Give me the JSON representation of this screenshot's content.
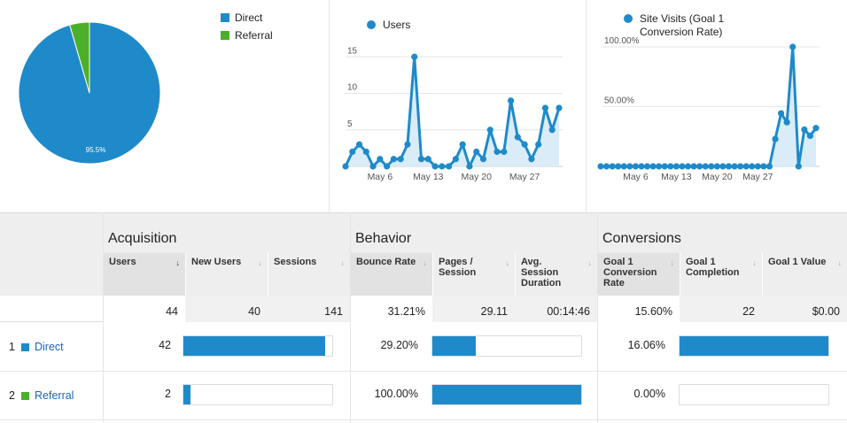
{
  "colors": {
    "direct": "#1f8ac9",
    "referral": "#4caf2a",
    "line": "#1f8ac9",
    "area": "#d9ecf8"
  },
  "pie": {
    "legend": [
      {
        "label": "Direct",
        "color": "#1f8ac9"
      },
      {
        "label": "Referral",
        "color": "#4caf2a"
      }
    ],
    "slice_label": "95.5%",
    "chart_data": {
      "type": "pie",
      "categories": [
        "Direct",
        "Referral"
      ],
      "values": [
        95.5,
        4.5
      ]
    }
  },
  "users_chart": {
    "legend": "Users",
    "chart_data": {
      "type": "line",
      "series": [
        {
          "name": "Users",
          "values": [
            0,
            2,
            3,
            2,
            0,
            1,
            0,
            1,
            1,
            3,
            15,
            1,
            1,
            0,
            0,
            0,
            1,
            3,
            0,
            2,
            1,
            5,
            2,
            2,
            9,
            4,
            3,
            1,
            3,
            8,
            5,
            8
          ]
        }
      ],
      "yticks": [
        5,
        10,
        15
      ],
      "ylim": [
        0,
        16
      ],
      "xticks": [
        "May 6",
        "May 13",
        "May 20",
        "May 27"
      ]
    }
  },
  "visits_chart": {
    "legend_line1": "Site Visits (Goal 1",
    "legend_line2": "Conversion Rate)",
    "chart_data": {
      "type": "line",
      "series": [
        {
          "name": "Site Visits (Goal 1 Conversion Rate)",
          "values": [
            0,
            0,
            0,
            0,
            0,
            0,
            0,
            0,
            0,
            0,
            0,
            0,
            0,
            0,
            0,
            0,
            0,
            0,
            0,
            0,
            0,
            0,
            0,
            0,
            0,
            0,
            0,
            0,
            0,
            0,
            22.9,
            44.4,
            36.9,
            100,
            0,
            30.8,
            25.6,
            32.1
          ]
        }
      ],
      "yticks": [
        "50.00%",
        "100.00%"
      ],
      "ylim": [
        0,
        100
      ],
      "xticks": [
        "May 6",
        "May 13",
        "May 20",
        "May 27"
      ]
    }
  },
  "table": {
    "groups": [
      "Acquisition",
      "Behavior",
      "Conversions"
    ],
    "columns": [
      {
        "label": "Users",
        "arrow": "↓"
      },
      {
        "label": "New Users",
        "arrow": "↓"
      },
      {
        "label": "Sessions",
        "arrow": "↓"
      },
      {
        "label": "Bounce Rate",
        "arrow": "↓"
      },
      {
        "label": "Pages / Session",
        "arrow": "↓"
      },
      {
        "label": "Avg. Session Duration",
        "arrow": "↓"
      },
      {
        "label": "Goal 1 Conversion Rate",
        "arrow": "↓"
      },
      {
        "label": "Goal 1 Completion",
        "arrow": "↓"
      },
      {
        "label": "Goal 1 Value",
        "arrow": "↓"
      }
    ],
    "totals": [
      "44",
      "40",
      "141",
      "31.21%",
      "29.11",
      "00:14:46",
      "15.60%",
      "22",
      "$0.00"
    ],
    "rows": [
      {
        "index": "1",
        "label": "Direct",
        "users": "42",
        "users_share": 0.955,
        "bounce_rate": "29.20%",
        "bounce_share": 0.292,
        "conv_rate": "16.06%",
        "conv_share": 1.0
      },
      {
        "index": "2",
        "label": "Referral",
        "users": "2",
        "users_share": 0.045,
        "bounce_rate": "100.00%",
        "bounce_share": 1.0,
        "conv_rate": "0.00%",
        "conv_share": 0.0
      }
    ]
  }
}
